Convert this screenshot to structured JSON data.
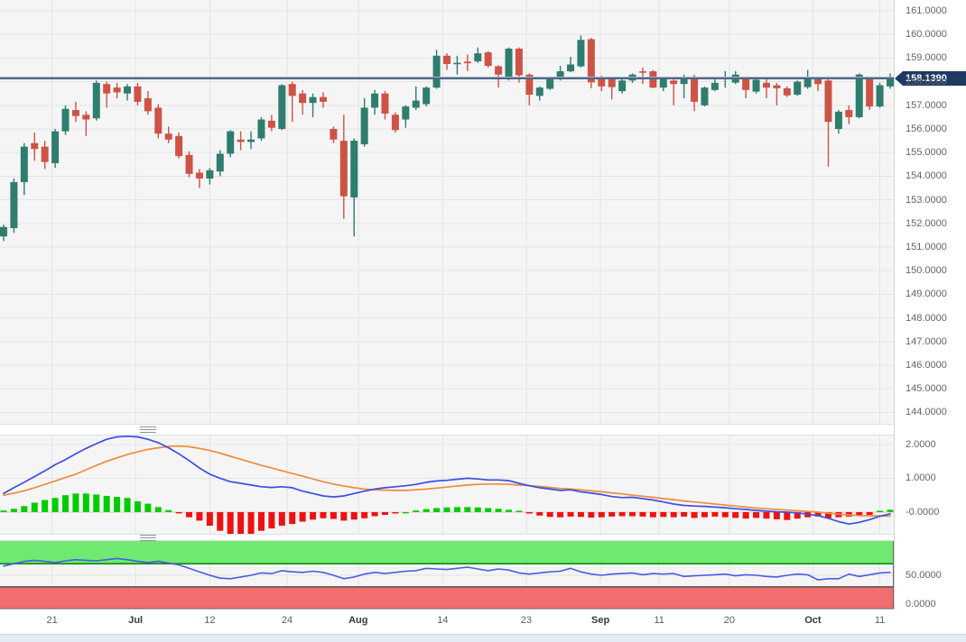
{
  "price_axis": {
    "last_price_label": "158.1390",
    "last_price": 158.139,
    "tick_labels": [
      "161.0000",
      "160.0000",
      "159.0000",
      "158.0000",
      "157.0000",
      "156.0000",
      "155.0000",
      "154.0000",
      "153.0000",
      "152.0000",
      "151.0000",
      "150.0000",
      "149.0000",
      "148.0000",
      "147.0000",
      "146.0000",
      "145.0000",
      "144.0000"
    ]
  },
  "time_axis": {
    "ticks": [
      {
        "label": "21",
        "index": 4.7,
        "bold": false
      },
      {
        "label": "Jul",
        "index": 12.8,
        "bold": true
      },
      {
        "label": "12",
        "index": 20.0,
        "bold": false
      },
      {
        "label": "24",
        "index": 27.5,
        "bold": false
      },
      {
        "label": "Aug",
        "index": 34.4,
        "bold": true
      },
      {
        "label": "14",
        "index": 42.6,
        "bold": false
      },
      {
        "label": "23",
        "index": 50.7,
        "bold": false
      },
      {
        "label": "Sep",
        "index": 57.9,
        "bold": true
      },
      {
        "label": "11",
        "index": 63.6,
        "bold": false
      },
      {
        "label": "20",
        "index": 70.4,
        "bold": false
      },
      {
        "label": "Oct",
        "index": 78.5,
        "bold": true
      },
      {
        "label": "11",
        "index": 85.0,
        "bold": false
      }
    ]
  },
  "colors": {
    "background": "#f5f5f5",
    "grid": "#e3e3e3",
    "candle_up": "#2e7d6f",
    "candle_down": "#cd5347",
    "price_line": "#4d6785",
    "price_tag_bg": "#1d3b62",
    "macd_hist_up": "#00cc00",
    "macd_hist_down": "#ee1111",
    "macd_line": "#3b4fe4",
    "signal_line": "#f08b3e",
    "rsi_line": "#4a5ce0",
    "rsi_band_high": "#70e970",
    "rsi_band_high_edge": "#128a12",
    "rsi_band_low": "#f26d6d",
    "rsi_band_low_edge": "#4a4a4a"
  },
  "chart_data": [
    {
      "type": "candlestick",
      "panel": "price",
      "ylim": [
        143.8,
        161.45
      ],
      "grid_values": [
        161,
        160,
        159,
        158,
        157,
        156,
        155,
        154,
        153,
        152,
        151,
        150,
        149,
        148,
        147,
        146,
        145,
        144
      ],
      "last_price": 158.139,
      "candles": [
        [
          151.45,
          151.95,
          151.25,
          151.85
        ],
        [
          151.8,
          153.9,
          151.6,
          153.75
        ],
        [
          153.75,
          155.4,
          153.2,
          155.25
        ],
        [
          155.4,
          155.85,
          154.65,
          155.15
        ],
        [
          155.25,
          155.5,
          154.3,
          154.6
        ],
        [
          154.55,
          156.0,
          154.35,
          155.9
        ],
        [
          155.9,
          157.0,
          155.75,
          156.85
        ],
        [
          156.8,
          157.15,
          156.3,
          156.55
        ],
        [
          156.6,
          156.75,
          155.7,
          156.4
        ],
        [
          156.45,
          158.05,
          156.35,
          157.95
        ],
        [
          157.9,
          158.0,
          156.9,
          157.5
        ],
        [
          157.75,
          157.95,
          157.3,
          157.55
        ],
        [
          157.5,
          157.9,
          157.2,
          157.8
        ],
        [
          157.8,
          157.95,
          157.0,
          157.15
        ],
        [
          157.3,
          157.6,
          156.6,
          156.75
        ],
        [
          156.9,
          157.05,
          155.6,
          155.8
        ],
        [
          155.8,
          156.1,
          155.4,
          155.55
        ],
        [
          155.7,
          155.85,
          154.75,
          154.85
        ],
        [
          154.9,
          155.05,
          153.95,
          154.1
        ],
        [
          154.15,
          154.3,
          153.5,
          153.9
        ],
        [
          153.9,
          154.35,
          153.65,
          154.25
        ],
        [
          154.2,
          155.1,
          154.0,
          154.95
        ],
        [
          154.95,
          155.95,
          154.8,
          155.9
        ],
        [
          155.55,
          155.9,
          155.1,
          155.45
        ],
        [
          155.45,
          155.9,
          155.15,
          155.55
        ],
        [
          155.6,
          156.5,
          155.5,
          156.4
        ],
        [
          156.35,
          156.6,
          155.9,
          156.05
        ],
        [
          156.0,
          157.9,
          155.95,
          157.85
        ],
        [
          157.9,
          158.0,
          156.3,
          157.4
        ],
        [
          157.5,
          157.65,
          156.6,
          157.1
        ],
        [
          157.1,
          157.5,
          156.5,
          157.35
        ],
        [
          157.35,
          157.55,
          156.9,
          157.15
        ],
        [
          156.0,
          156.1,
          155.4,
          155.55
        ],
        [
          155.5,
          156.6,
          152.2,
          153.15
        ],
        [
          153.1,
          155.6,
          151.45,
          155.5
        ],
        [
          155.35,
          157.3,
          155.25,
          156.9
        ],
        [
          156.9,
          157.65,
          156.6,
          157.5
        ],
        [
          157.5,
          157.6,
          156.4,
          156.65
        ],
        [
          156.6,
          156.7,
          155.85,
          155.95
        ],
        [
          156.4,
          157.0,
          156.05,
          156.95
        ],
        [
          156.9,
          157.8,
          156.8,
          157.2
        ],
        [
          157.05,
          157.8,
          156.95,
          157.75
        ],
        [
          157.75,
          159.35,
          157.7,
          159.1
        ],
        [
          159.1,
          159.2,
          158.5,
          158.75
        ],
        [
          158.75,
          159.1,
          158.3,
          158.8
        ],
        [
          158.85,
          159.15,
          158.45,
          158.78
        ],
        [
          158.86,
          159.45,
          158.8,
          159.2
        ],
        [
          159.24,
          159.3,
          158.6,
          158.67
        ],
        [
          158.65,
          158.7,
          157.75,
          158.3
        ],
        [
          158.15,
          159.45,
          158.05,
          159.4
        ],
        [
          159.4,
          159.45,
          157.96,
          158.27
        ],
        [
          158.3,
          158.35,
          157.0,
          157.45
        ],
        [
          157.4,
          157.8,
          157.2,
          157.75
        ],
        [
          157.7,
          158.2,
          157.65,
          158.15
        ],
        [
          158.15,
          158.67,
          158.05,
          158.44
        ],
        [
          158.44,
          159.05,
          158.4,
          158.73
        ],
        [
          158.65,
          159.96,
          158.6,
          159.77
        ],
        [
          159.8,
          159.85,
          157.72,
          157.97
        ],
        [
          158.2,
          158.25,
          157.6,
          157.8
        ],
        [
          158.15,
          158.2,
          157.25,
          157.77
        ],
        [
          157.6,
          158.1,
          157.5,
          158.05
        ],
        [
          158.05,
          158.35,
          157.95,
          158.3
        ],
        [
          158.44,
          158.6,
          157.9,
          158.4
        ],
        [
          158.44,
          158.5,
          157.72,
          157.75
        ],
        [
          157.75,
          158.2,
          157.6,
          158.1
        ],
        [
          158.05,
          158.2,
          157.0,
          157.9
        ],
        [
          157.9,
          158.3,
          157.3,
          158.15
        ],
        [
          158.1,
          158.3,
          156.75,
          157.15
        ],
        [
          157.0,
          157.8,
          156.95,
          157.75
        ],
        [
          157.65,
          158.2,
          157.6,
          157.95
        ],
        [
          158.2,
          158.45,
          157.75,
          158.2
        ],
        [
          157.96,
          158.45,
          157.9,
          158.3
        ],
        [
          158.15,
          158.2,
          157.3,
          157.65
        ],
        [
          157.58,
          158.1,
          157.5,
          158.08
        ],
        [
          157.95,
          158.15,
          157.3,
          157.75
        ],
        [
          157.85,
          157.95,
          157.0,
          157.72
        ],
        [
          157.72,
          157.8,
          157.35,
          157.42
        ],
        [
          157.45,
          158.05,
          157.4,
          158.0
        ],
        [
          157.77,
          158.5,
          157.7,
          158.15
        ],
        [
          158.1,
          158.2,
          157.6,
          157.9
        ],
        [
          158.05,
          158.1,
          154.4,
          156.3
        ],
        [
          156.0,
          156.8,
          155.8,
          156.73
        ],
        [
          156.8,
          157.0,
          156.2,
          156.5
        ],
        [
          156.5,
          158.35,
          156.45,
          158.3
        ],
        [
          158.15,
          158.2,
          156.8,
          156.95
        ],
        [
          156.95,
          157.95,
          156.9,
          157.85
        ],
        [
          157.8,
          158.35,
          157.7,
          158.14
        ]
      ]
    },
    {
      "type": "macd",
      "panel": "indicator-1",
      "y_ticks": [
        {
          "label": "2.0000",
          "value": 2
        },
        {
          "label": "1.0000",
          "value": 1
        },
        {
          "label": "-0.0000",
          "value": 0
        }
      ],
      "histogram": [
        0.05,
        0.1,
        0.18,
        0.28,
        0.36,
        0.42,
        0.5,
        0.55,
        0.55,
        0.52,
        0.48,
        0.45,
        0.42,
        0.32,
        0.25,
        0.15,
        0.06,
        -0.03,
        -0.15,
        -0.25,
        -0.4,
        -0.55,
        -0.65,
        -0.7,
        -0.65,
        -0.55,
        -0.48,
        -0.4,
        -0.35,
        -0.28,
        -0.22,
        -0.18,
        -0.2,
        -0.25,
        -0.22,
        -0.18,
        -0.12,
        -0.08,
        -0.04,
        0.0,
        0.05,
        0.09,
        0.12,
        0.14,
        0.15,
        0.15,
        0.14,
        0.12,
        0.1,
        0.07,
        0.04,
        -0.04,
        -0.1,
        -0.14,
        -0.15,
        -0.13,
        -0.14,
        -0.16,
        -0.15,
        -0.13,
        -0.12,
        -0.12,
        -0.13,
        -0.15,
        -0.14,
        -0.15,
        -0.13,
        -0.17,
        -0.15,
        -0.13,
        -0.15,
        -0.17,
        -0.19,
        -0.17,
        -0.19,
        -0.21,
        -0.23,
        -0.19,
        -0.15,
        -0.13,
        -0.17,
        -0.15,
        -0.13,
        -0.11,
        -0.08,
        0.04,
        0.07
      ],
      "macd": [
        0.55,
        0.72,
        0.88,
        1.05,
        1.22,
        1.4,
        1.55,
        1.72,
        1.88,
        2.02,
        2.15,
        2.22,
        2.24,
        2.22,
        2.15,
        2.05,
        1.9,
        1.72,
        1.52,
        1.3,
        1.12,
        1.0,
        0.9,
        0.85,
        0.8,
        0.75,
        0.73,
        0.75,
        0.72,
        0.62,
        0.55,
        0.48,
        0.45,
        0.48,
        0.55,
        0.62,
        0.68,
        0.72,
        0.75,
        0.78,
        0.82,
        0.88,
        0.92,
        0.94,
        0.97,
        1.0,
        0.98,
        0.95,
        0.95,
        0.93,
        0.85,
        0.78,
        0.72,
        0.68,
        0.64,
        0.66,
        0.6,
        0.56,
        0.52,
        0.46,
        0.43,
        0.44,
        0.4,
        0.36,
        0.3,
        0.24,
        0.2,
        0.18,
        0.17,
        0.15,
        0.13,
        0.1,
        0.08,
        0.05,
        0.03,
        0.01,
        0.0,
        -0.02,
        -0.06,
        -0.1,
        -0.18,
        -0.28,
        -0.35,
        -0.3,
        -0.22,
        -0.12,
        -0.05
      ],
      "signal": [
        0.5,
        0.56,
        0.63,
        0.72,
        0.82,
        0.92,
        1.02,
        1.12,
        1.25,
        1.38,
        1.5,
        1.6,
        1.7,
        1.78,
        1.85,
        1.9,
        1.94,
        1.95,
        1.93,
        1.88,
        1.82,
        1.74,
        1.65,
        1.56,
        1.47,
        1.38,
        1.3,
        1.22,
        1.14,
        1.06,
        0.98,
        0.9,
        0.83,
        0.77,
        0.72,
        0.68,
        0.66,
        0.65,
        0.64,
        0.64,
        0.66,
        0.68,
        0.71,
        0.74,
        0.77,
        0.8,
        0.82,
        0.83,
        0.83,
        0.82,
        0.8,
        0.78,
        0.76,
        0.73,
        0.7,
        0.68,
        0.66,
        0.63,
        0.6,
        0.57,
        0.54,
        0.5,
        0.47,
        0.44,
        0.4,
        0.37,
        0.33,
        0.3,
        0.27,
        0.24,
        0.21,
        0.18,
        0.15,
        0.12,
        0.1,
        0.08,
        0.06,
        0.04,
        0.02,
        0.0,
        -0.03,
        -0.06,
        -0.08,
        -0.1,
        -0.11,
        -0.11,
        -0.12
      ]
    },
    {
      "type": "rsi",
      "panel": "indicator-2",
      "y_ticks": [
        {
          "label": "50.0000",
          "value": 50
        },
        {
          "label": "0.0000",
          "value": 0
        }
      ],
      "bands": {
        "overbought": 70,
        "oversold": 30
      },
      "values": [
        66,
        70,
        74,
        76,
        74,
        72,
        75,
        77,
        76,
        75,
        77,
        79,
        77,
        74,
        72,
        74,
        71,
        68,
        62,
        56,
        50,
        45,
        44,
        47,
        50,
        54,
        53,
        58,
        56,
        55,
        57,
        55,
        50,
        44,
        47,
        52,
        55,
        53,
        55,
        57,
        58,
        62,
        61,
        60,
        62,
        64,
        61,
        58,
        61,
        59,
        54,
        52,
        54,
        56,
        57,
        62,
        56,
        52,
        50,
        52,
        53,
        54,
        51,
        53,
        52,
        53,
        48,
        49,
        50,
        51,
        52,
        49,
        51,
        50,
        48,
        47,
        50,
        52,
        51,
        42,
        44,
        44,
        52,
        48,
        51,
        54,
        55
      ]
    }
  ]
}
